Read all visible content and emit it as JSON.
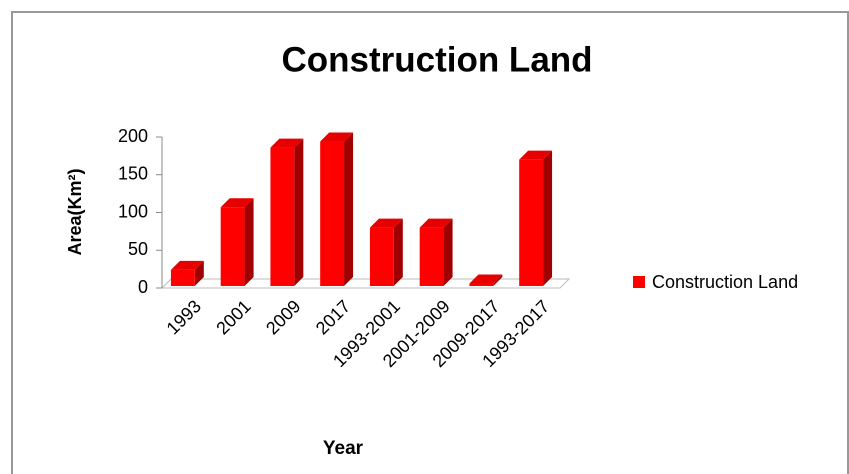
{
  "chart_data": {
    "type": "bar",
    "title": "Construction Land",
    "x_label": "Year",
    "y_label": "Area(Km²)",
    "categories": [
      "1993",
      "2001",
      "2009",
      "2017",
      "1993-2001",
      "2001-2009",
      "2009-2017",
      "1993-2017"
    ],
    "series": [
      {
        "name": "Construction Land",
        "color": "#ff0000",
        "values": [
          24,
          107,
          186,
          194,
          80,
          80,
          6,
          170
        ]
      }
    ],
    "ylim": [
      0,
      200
    ],
    "yticks": [
      0,
      50,
      100,
      150,
      200
    ],
    "legend": "right"
  }
}
